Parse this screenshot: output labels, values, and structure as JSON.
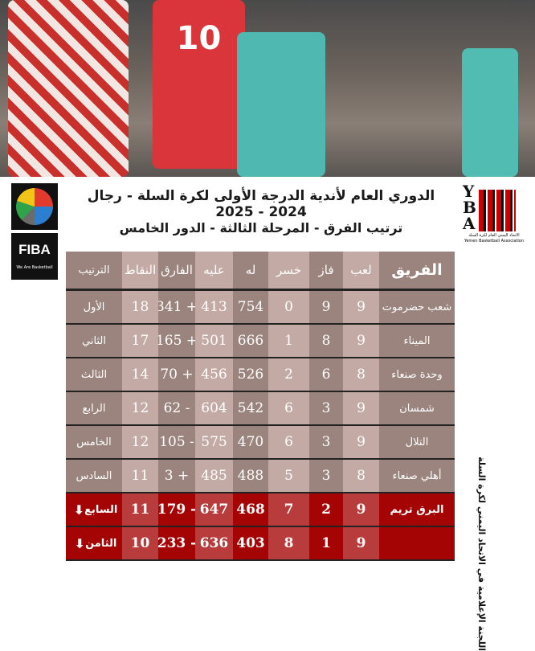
{
  "logos": {
    "fiba_word": "FIBA",
    "fiba_tagline": "We Are Basketball",
    "yba_letters": [
      "Y",
      "B",
      "A"
    ],
    "yba_caption_ar": "الاتحاد اليمني العام لكرة السلة",
    "yba_caption_en": "Yemen Basketball Association"
  },
  "photo": {
    "jersey_number": "10"
  },
  "title": "الدوري العام لأندية الدرجة الأولى لكرة السلة - رجال 2024 - 2025",
  "subtitle": "ترتيب الفرق - المرحلة الثالثة - الدور الخامس",
  "side_text": "اللجنة الإعلامية في الاتحاد اليمني لكرة السلة",
  "headers": {
    "rank": "الترتيب",
    "points": "النقاط",
    "diff": "الفارق",
    "against": "عليه",
    "for": "له",
    "lost": "خسر",
    "won": "فاز",
    "played": "لعب",
    "team": "الفريق"
  },
  "rows": [
    {
      "team": "شعب حضرموت",
      "played": "9",
      "won": "9",
      "lost": "0",
      "for": "754",
      "against": "413",
      "diff": "341 +",
      "points": "18",
      "rank": "الأول"
    },
    {
      "team": "الميناء",
      "played": "9",
      "won": "8",
      "lost": "1",
      "for": "666",
      "against": "501",
      "diff": "165 +",
      "points": "17",
      "rank": "الثاني"
    },
    {
      "team": "وحدة صنعاء",
      "played": "8",
      "won": "6",
      "lost": "2",
      "for": "526",
      "against": "456",
      "diff": "70 +",
      "points": "14",
      "rank": "الثالث"
    },
    {
      "team": "شمسان",
      "played": "9",
      "won": "3",
      "lost": "6",
      "for": "542",
      "against": "604",
      "diff": "62 -",
      "points": "12",
      "rank": "الرابع"
    },
    {
      "team": "التلال",
      "played": "9",
      "won": "3",
      "lost": "6",
      "for": "470",
      "against": "575",
      "diff": "105 -",
      "points": "12",
      "rank": "الخامس"
    },
    {
      "team": "أهلي صنعاء",
      "played": "8",
      "won": "3",
      "lost": "5",
      "for": "488",
      "against": "485",
      "diff": "3 +",
      "points": "11",
      "rank": "السادس"
    },
    {
      "team": "البرق تريم",
      "played": "9",
      "won": "2",
      "lost": "7",
      "for": "468",
      "against": "647",
      "diff": "179 -",
      "points": "11",
      "rank": "السابع",
      "relegation": true
    },
    {
      "team": "",
      "played": "9",
      "won": "1",
      "lost": "8",
      "for": "403",
      "against": "636",
      "diff": "233 -",
      "points": "10",
      "rank": "الثامن",
      "relegation": true
    }
  ],
  "colors": {
    "dark": "#9b847e",
    "light": "#c3aaa5",
    "red_dark": "#a40404",
    "red_light": "#b83c3c"
  }
}
